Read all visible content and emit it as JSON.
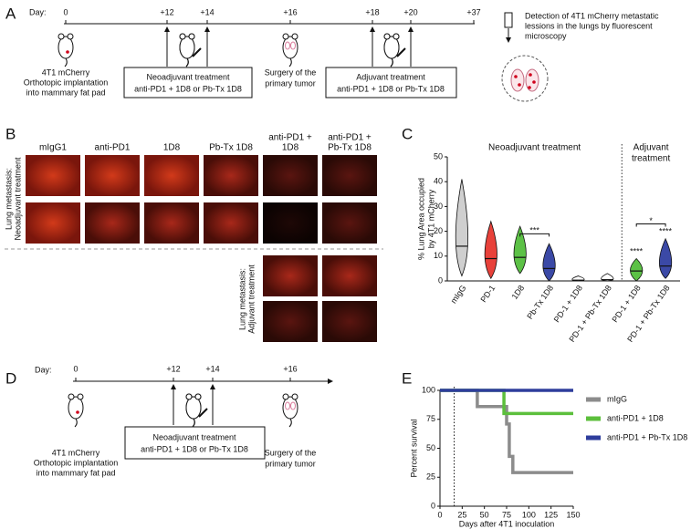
{
  "panel_A": {
    "letter": "A",
    "day_label": "Day:",
    "days": [
      "0",
      "+12",
      "+14",
      "+16",
      "+18",
      "+20",
      "+37"
    ],
    "implant": [
      "4T1 mCherry",
      "Orthotopic implantation",
      "into mammary fat pad"
    ],
    "neo": [
      "Neoadjuvant treatment",
      "anti-PD1 + 1D8 or Pb-Tx 1D8"
    ],
    "surgery": [
      "Surgery of the",
      "primary tumor"
    ],
    "adj": [
      "Adjuvant treatment",
      "anti-PD1 + 1D8 or Pb-Tx 1D8"
    ],
    "detection": [
      "Detection of  4T1 mCherry metastatic",
      "lessions in the lungs by fluorescent",
      "microscopy"
    ]
  },
  "panel_B": {
    "letter": "B",
    "columns": [
      [
        "mIgG1"
      ],
      [
        "anti-PD1"
      ],
      [
        "1D8"
      ],
      [
        "Pb-Tx 1D8"
      ],
      [
        "anti-PD1 +",
        "1D8"
      ],
      [
        "anti-PD1 +",
        "Pb-Tx 1D8"
      ]
    ],
    "neo_label": [
      "Lung metastasis:",
      "Neoadjuvant treatment"
    ],
    "adj_label": [
      "Lung metastasis:",
      "Adjuvant treatment"
    ]
  },
  "panel_D": {
    "letter": "D",
    "day_label": "Day:",
    "days": [
      "0",
      "+12",
      "+14",
      "+16"
    ],
    "implant": [
      "4T1 mCherry",
      "Orthotopic implantation",
      "into mammary fat pad"
    ],
    "neo": [
      "Neoadjuvant treatment",
      "anti-PD1 + 1D8 or Pb-Tx 1D8"
    ],
    "surgery": [
      "Surgery of the",
      "primary tumor"
    ]
  },
  "chart_data": [
    {
      "letter": "C",
      "type": "violin",
      "categories": [
        "mIgG",
        "PD-1",
        "1D8",
        "Pb-Tx 1D8",
        "PD-1 + 1D8",
        "PD-1 + Pb-Tx 1D8",
        "PD-1 + 1D8",
        "PD-1 + Pb-Tx 1D8"
      ],
      "medians": [
        14,
        9,
        9.5,
        5,
        0.3,
        0.5,
        4,
        6
      ],
      "mins": [
        2,
        1,
        3,
        0,
        0,
        0,
        0,
        1
      ],
      "maxs": [
        41,
        24,
        22,
        15,
        2,
        3,
        9,
        17
      ],
      "colors": [
        "#cfcfcf",
        "#e8413a",
        "#5cc146",
        "#3b49a6",
        "#ffffff",
        "#ffffff",
        "#5cc146",
        "#3b49a6"
      ],
      "ylabel": [
        "% Lung Area occupied",
        "by 4T1 mCherry"
      ],
      "neo_title": "Neoadjuvant treatment",
      "adj_title": [
        "Adjuvant",
        "treatment"
      ],
      "significance": [
        "***",
        "****",
        "*",
        "****"
      ],
      "ylim": [
        0,
        50
      ],
      "yticks": [
        0,
        10,
        20,
        30,
        40,
        50
      ]
    },
    {
      "letter": "E",
      "type": "line",
      "xlabel": "Days  after 4T1 inoculation",
      "ylabel": "Percent survival",
      "xlim": [
        0,
        150
      ],
      "xticks": [
        0,
        25,
        50,
        75,
        100,
        125,
        150
      ],
      "ylim": [
        0,
        100
      ],
      "yticks": [
        0,
        25,
        50,
        75,
        100
      ],
      "vline": 16,
      "series": [
        {
          "name": "mIgG",
          "color": "#8c8c8c",
          "x": [
            0,
            42,
            42,
            75,
            75,
            78,
            78,
            82,
            82,
            150
          ],
          "values": [
            100,
            100,
            86,
            86,
            71,
            71,
            43,
            43,
            29,
            29
          ]
        },
        {
          "name": "anti-PD1 + 1D8",
          "color": "#5cbf3c",
          "x": [
            0,
            72,
            72,
            150
          ],
          "values": [
            100,
            100,
            80,
            80
          ]
        },
        {
          "name": "anti-PD1 + Pb-Tx 1D8",
          "color": "#2e3d9c",
          "x": [
            0,
            150
          ],
          "values": [
            100,
            100
          ]
        }
      ]
    }
  ]
}
